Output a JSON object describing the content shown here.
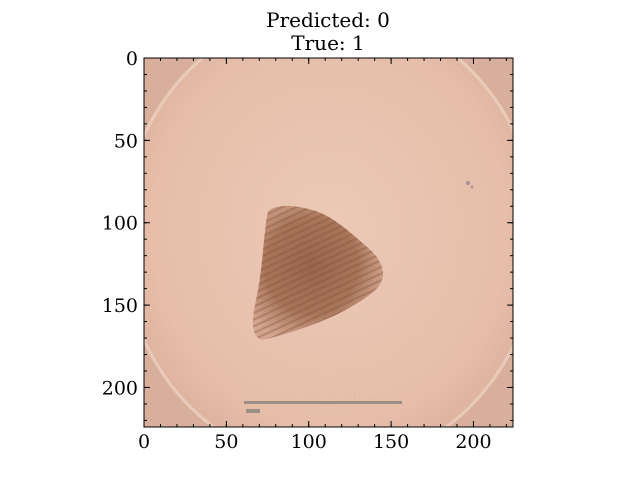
{
  "title": {
    "line1": "Predicted: 0",
    "line2": "True: 1"
  },
  "axes": {
    "x_ticks": [
      "0",
      "50",
      "100",
      "150",
      "200"
    ],
    "y_ticks": [
      "0",
      "50",
      "100",
      "150",
      "200"
    ],
    "x_range": [
      0,
      224
    ],
    "y_range": [
      0,
      224
    ],
    "y_inverted": true,
    "grid": false
  },
  "image": {
    "description_kind": "dermoscopy image of a skin lesion with scale ruler",
    "colors": {
      "skin_background": "#e7c2ad",
      "skin_edge": "#d9ad9b",
      "lesion": "#a57259",
      "lesion_dark": "#8c5a45",
      "ruler": "#9c8f86",
      "frame_light": "#f0d8cc"
    }
  }
}
